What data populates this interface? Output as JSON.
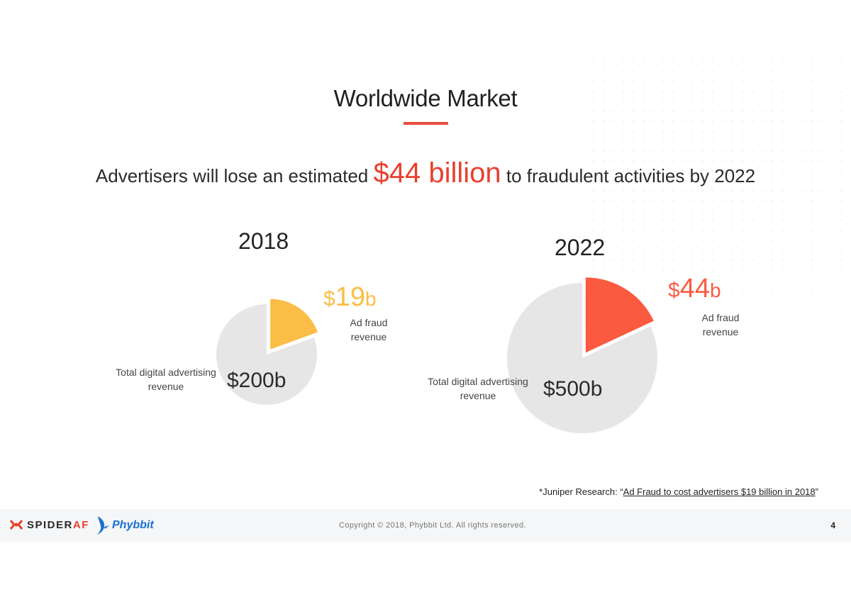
{
  "title": "Worldwide Market",
  "headline": {
    "prefix": "Advertisers will lose an estimated",
    "highlight": "$44 billion",
    "suffix": "to fraudulent activities by 2022"
  },
  "chart_data": [
    {
      "type": "pie",
      "title": "2018",
      "slices": [
        {
          "label": "Ad fraud revenue",
          "value": 19,
          "display": "$19b",
          "currency": "$",
          "number": "19",
          "unit": "b",
          "color": "#fbbd46"
        },
        {
          "label": "Total digital advertising revenue",
          "value": 200,
          "display": "$200b",
          "color": "#e6e6e6"
        }
      ]
    },
    {
      "type": "pie",
      "title": "2022",
      "slices": [
        {
          "label": "Ad fraud revenue",
          "value": 44,
          "display": "$44b",
          "currency": "$",
          "number": "44",
          "unit": "b",
          "color": "#fa5a40"
        },
        {
          "label": "Total digital advertising revenue",
          "value": 500,
          "display": "$500b",
          "color": "#e6e6e6"
        }
      ]
    }
  ],
  "labels": {
    "fraud_line1": "Ad fraud",
    "fraud_line2": "revenue",
    "total_line1": "Total digital advertising",
    "total_line2": "revenue"
  },
  "source": {
    "prefix": "*Juniper Research: “",
    "link": "Ad Fraud to cost advertisers $19 billion in 2018",
    "suffix": "”"
  },
  "footer": {
    "logo1_main": "SPIDER",
    "logo1_accent": "AF",
    "logo2": "Phybbit",
    "copyright": "Copyright © 2018, Phybbit Ltd. All rights reserved.",
    "page": "4"
  },
  "colors": {
    "accent": "#e8402f",
    "fraud2018": "#fbbd46",
    "fraud2022": "#fa5a40",
    "pie_base": "#e6e6e6"
  }
}
